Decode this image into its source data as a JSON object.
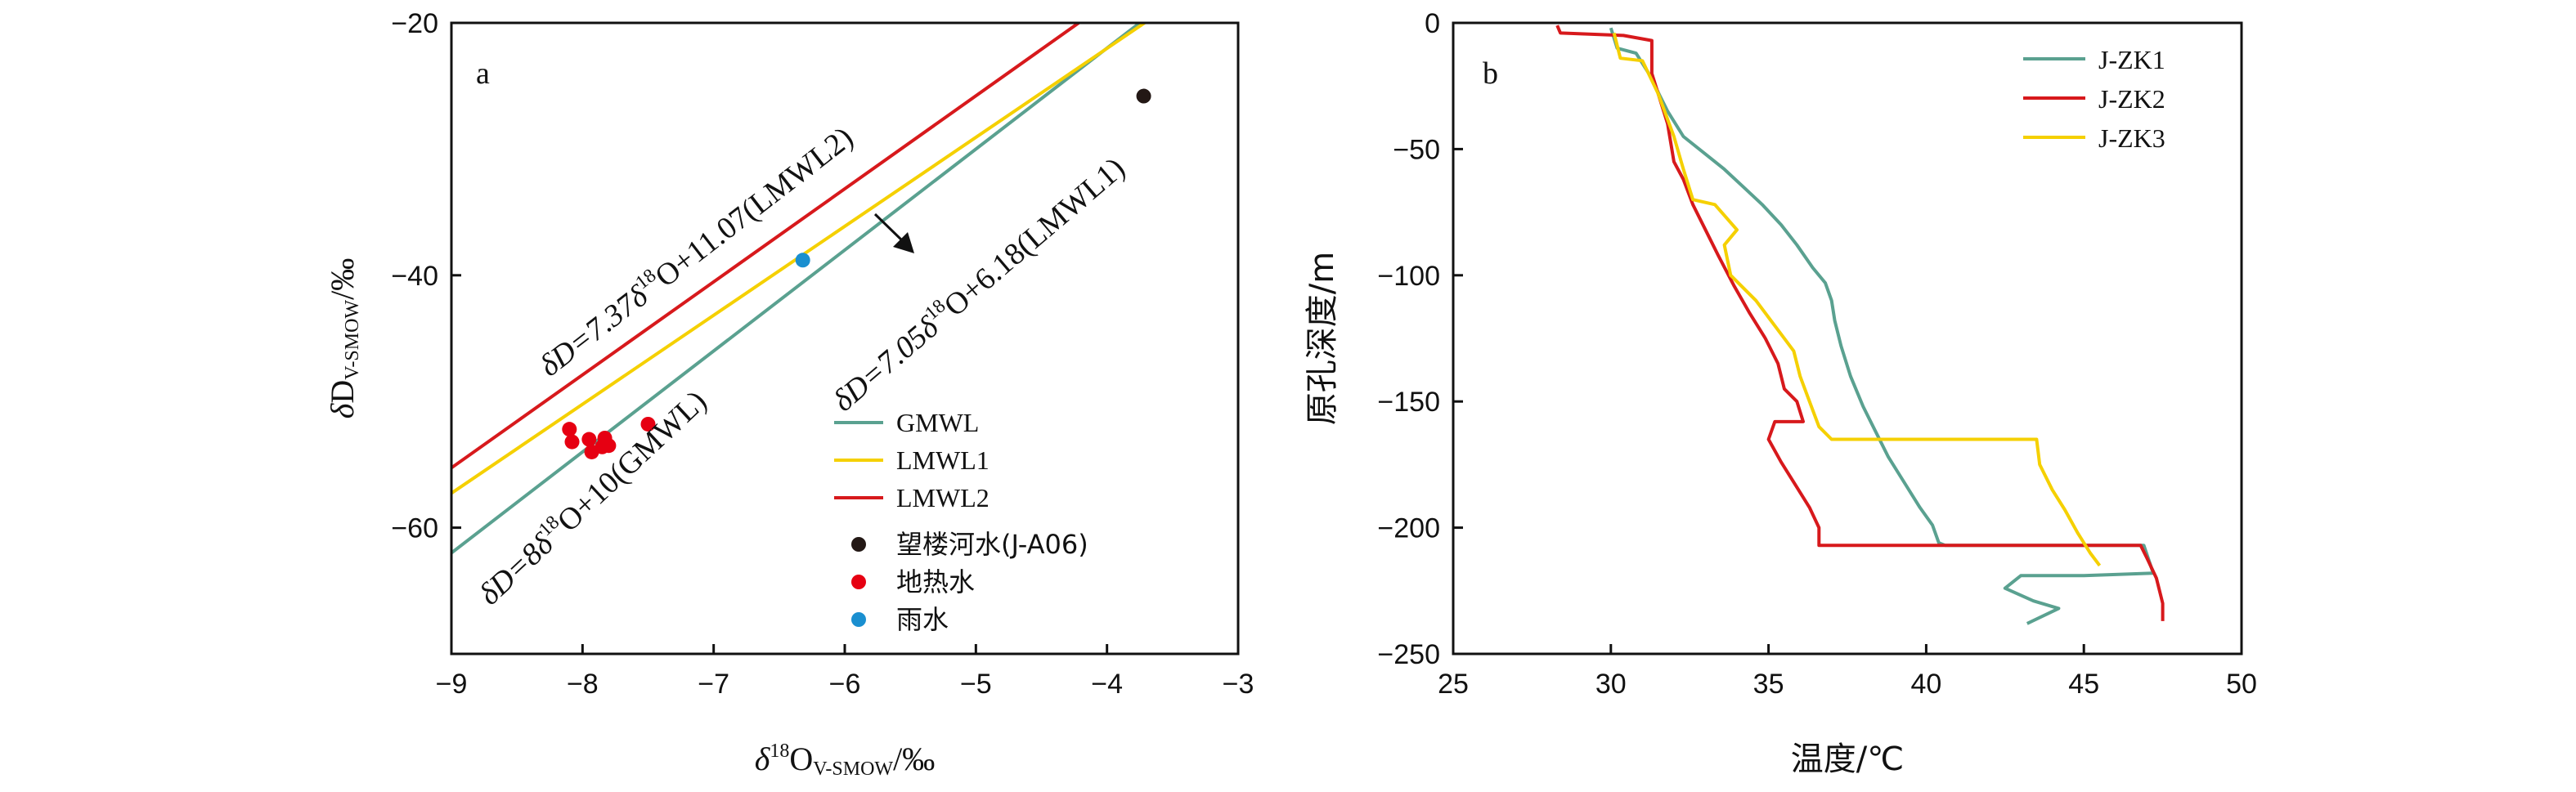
{
  "chart_data": [
    {
      "panel": "a",
      "type": "scatter",
      "xlabel": {
        "delta": "δ",
        "sup": "18",
        "main": "O",
        "sub": "V-SMOW",
        "unit": "/‰"
      },
      "ylabel": {
        "delta": "δ",
        "main": "D",
        "sub": "V-SMOW",
        "unit": "/‰"
      },
      "xlim": [
        -9,
        -3
      ],
      "ylim": [
        -70,
        -20
      ],
      "xticks": [
        -9,
        -8,
        -7,
        -6,
        -5,
        -4,
        -3
      ],
      "xtick_labels": [
        "−9",
        "−8",
        "−7",
        "−6",
        "−5",
        "−4",
        "−3"
      ],
      "yticks": [
        -60,
        -40,
        -20
      ],
      "ytick_labels": [
        "−60",
        "−40",
        "−20"
      ],
      "lines": [
        {
          "name": "GMWL",
          "slope": 8,
          "intercept": 10,
          "color": "#5aa190",
          "annotation": {
            "pre": "δD=8δ",
            "sup": "18",
            "post": "O+10(GMWL)"
          }
        },
        {
          "name": "LMWL1",
          "slope": 7.05,
          "intercept": 6.18,
          "color": "#f5d000",
          "annotation": {
            "pre": "δD=7.05δ",
            "sup": "18",
            "post": "O+6.18(LMWL1)"
          }
        },
        {
          "name": "LMWL2",
          "slope": 7.37,
          "intercept": 11.07,
          "color": "#d7191c",
          "annotation": {
            "pre": "δD=7.37δ",
            "sup": "18",
            "post": "O+11.07(LMWL2)"
          }
        }
      ],
      "points": [
        {
          "name": "望楼河水(J-A06)",
          "color": "#231815",
          "data": [
            [
              -3.72,
              -25.8
            ]
          ]
        },
        {
          "name": "地热水",
          "color": "#e60012",
          "data": [
            [
              -8.1,
              -52.2
            ],
            [
              -8.08,
              -53.2
            ],
            [
              -7.95,
              -53.0
            ],
            [
              -7.93,
              -54.0
            ],
            [
              -7.85,
              -53.6
            ],
            [
              -7.83,
              -52.9
            ],
            [
              -7.8,
              -53.5
            ],
            [
              -7.5,
              -51.8
            ]
          ]
        },
        {
          "name": "雨水",
          "color": "#1a8fd0",
          "data": [
            [
              -6.32,
              -38.8
            ]
          ]
        }
      ],
      "panel_label": "a",
      "legend_position": "bottom-right"
    },
    {
      "panel": "b",
      "type": "line",
      "xlabel": "温度/℃",
      "ylabel": "原孔深度/m",
      "xlim": [
        25,
        50
      ],
      "ylim": [
        -250,
        0
      ],
      "xticks": [
        25,
        30,
        35,
        40,
        45,
        50
      ],
      "xtick_labels": [
        "25",
        "30",
        "35",
        "40",
        "45",
        "50"
      ],
      "yticks": [
        0,
        -50,
        -100,
        -150,
        -200,
        -250
      ],
      "ytick_labels": [
        "0",
        "−50",
        "−100",
        "−150",
        "−200",
        "−250"
      ],
      "panel_label": "b",
      "legend_position": "top-right",
      "series": [
        {
          "name": "J-ZK1",
          "color": "#5aa190",
          "points": [
            [
              30.0,
              -2
            ],
            [
              30.2,
              -10
            ],
            [
              30.8,
              -12
            ],
            [
              31.2,
              -20
            ],
            [
              31.8,
              -35
            ],
            [
              32.3,
              -45
            ],
            [
              33.0,
              -52
            ],
            [
              33.6,
              -58
            ],
            [
              34.2,
              -65
            ],
            [
              34.8,
              -72
            ],
            [
              35.4,
              -80
            ],
            [
              35.9,
              -88
            ],
            [
              36.4,
              -97
            ],
            [
              36.8,
              -103
            ],
            [
              37.0,
              -110
            ],
            [
              37.1,
              -118
            ],
            [
              37.3,
              -128
            ],
            [
              37.6,
              -140
            ],
            [
              38.0,
              -152
            ],
            [
              38.4,
              -162
            ],
            [
              38.8,
              -172
            ],
            [
              39.3,
              -182
            ],
            [
              39.8,
              -192
            ],
            [
              40.2,
              -199
            ],
            [
              40.4,
              -206
            ],
            [
              40.6,
              -207
            ],
            [
              46.9,
              -207
            ],
            [
              47.2,
              -218
            ],
            [
              45.0,
              -219
            ],
            [
              43.0,
              -219
            ],
            [
              42.5,
              -224
            ],
            [
              43.4,
              -229
            ],
            [
              44.2,
              -232
            ],
            [
              43.2,
              -238
            ]
          ]
        },
        {
          "name": "J-ZK2",
          "color": "#d7191c",
          "points": [
            [
              28.3,
              -1
            ],
            [
              28.4,
              -4
            ],
            [
              30.4,
              -5
            ],
            [
              31.3,
              -7
            ],
            [
              31.3,
              -20
            ],
            [
              31.8,
              -40
            ],
            [
              32.0,
              -55
            ],
            [
              32.3,
              -62
            ],
            [
              32.6,
              -72
            ],
            [
              33.0,
              -82
            ],
            [
              33.4,
              -92
            ],
            [
              33.9,
              -104
            ],
            [
              34.4,
              -115
            ],
            [
              34.9,
              -125
            ],
            [
              35.3,
              -135
            ],
            [
              35.5,
              -145
            ],
            [
              35.9,
              -150
            ],
            [
              36.1,
              -158
            ],
            [
              35.2,
              -158
            ],
            [
              35.0,
              -165
            ],
            [
              35.4,
              -174
            ],
            [
              35.9,
              -184
            ],
            [
              36.3,
              -192
            ],
            [
              36.6,
              -200
            ],
            [
              36.6,
              -207
            ],
            [
              46.8,
              -207
            ],
            [
              47.0,
              -212
            ],
            [
              47.3,
              -220
            ],
            [
              47.5,
              -230
            ],
            [
              47.5,
              -237
            ]
          ]
        },
        {
          "name": "J-ZK3",
          "color": "#f5d000",
          "points": [
            [
              30.1,
              -4
            ],
            [
              30.3,
              -14
            ],
            [
              31.0,
              -15
            ],
            [
              31.5,
              -28
            ],
            [
              32.0,
              -45
            ],
            [
              32.3,
              -58
            ],
            [
              32.6,
              -70
            ],
            [
              33.3,
              -72
            ],
            [
              34.0,
              -82
            ],
            [
              33.6,
              -88
            ],
            [
              33.8,
              -100
            ],
            [
              34.6,
              -110
            ],
            [
              35.2,
              -120
            ],
            [
              35.8,
              -130
            ],
            [
              36.0,
              -140
            ],
            [
              36.3,
              -150
            ],
            [
              36.6,
              -160
            ],
            [
              37.0,
              -165
            ],
            [
              43.5,
              -165
            ],
            [
              43.6,
              -175
            ],
            [
              44.0,
              -185
            ],
            [
              44.4,
              -193
            ],
            [
              44.8,
              -202
            ],
            [
              45.2,
              -210
            ],
            [
              45.5,
              -215
            ]
          ]
        }
      ]
    }
  ]
}
